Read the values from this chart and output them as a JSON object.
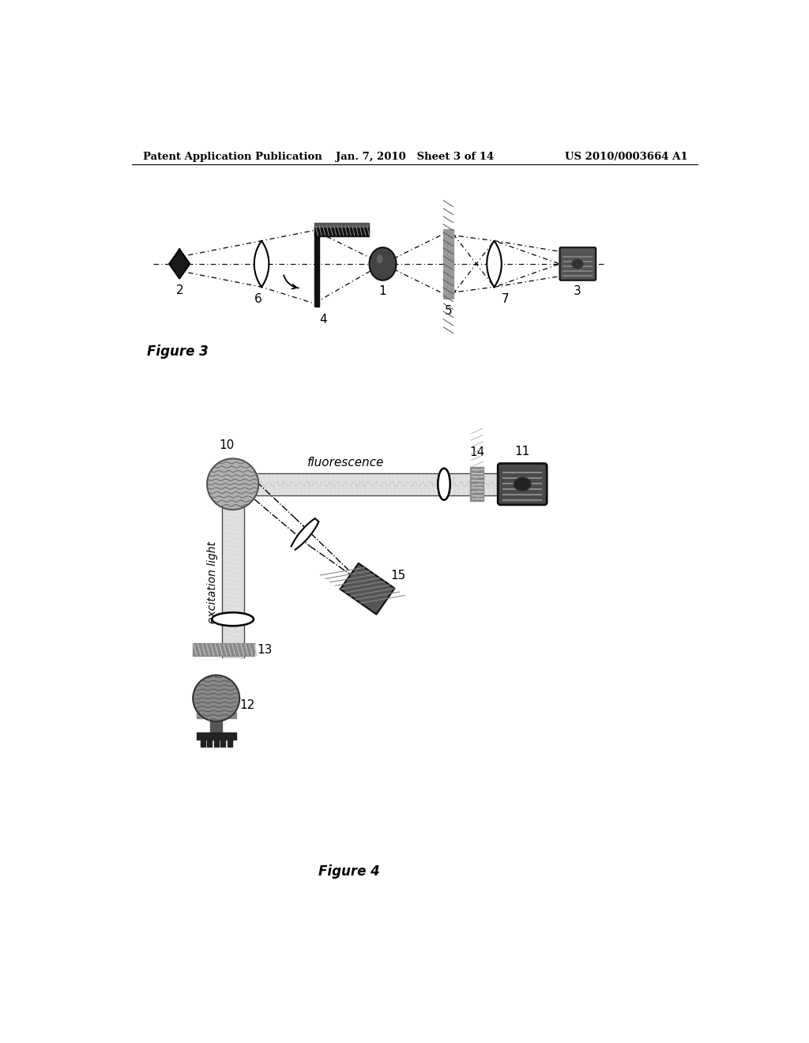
{
  "background_color": "#ffffff",
  "header_left": "Patent Application Publication",
  "header_center": "Jan. 7, 2010   Sheet 3 of 14",
  "header_right": "US 2010/0003664 A1",
  "fig3_label": "Figure 3",
  "fig4_label": "Figure 4"
}
